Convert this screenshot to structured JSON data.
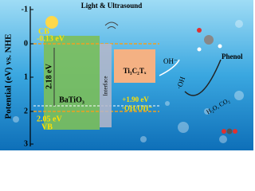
{
  "axis": {
    "label": "Potential (eV) vs. NHE",
    "ticks": [
      "-1",
      "0",
      "1",
      "2",
      "3"
    ]
  },
  "energy_input": "Light & Ultrasound",
  "batio3": {
    "label": "BaTiO₃",
    "cb": "CB",
    "cb_potential": "-0.13 eV",
    "band_gap": "2.18 eV",
    "vb_potential": "2.05 eV",
    "vb": "VB"
  },
  "interface": "Interface",
  "mxene": {
    "label": "Ti₃C₂Tₓ",
    "potential": "+1.90 eV"
  },
  "redox_couple": "·OH/OH⁻",
  "reaction": {
    "reactant": "OH⁻",
    "radical": "·OH",
    "pollutant": "Phenol",
    "products": "H₂O, CO₂"
  }
}
